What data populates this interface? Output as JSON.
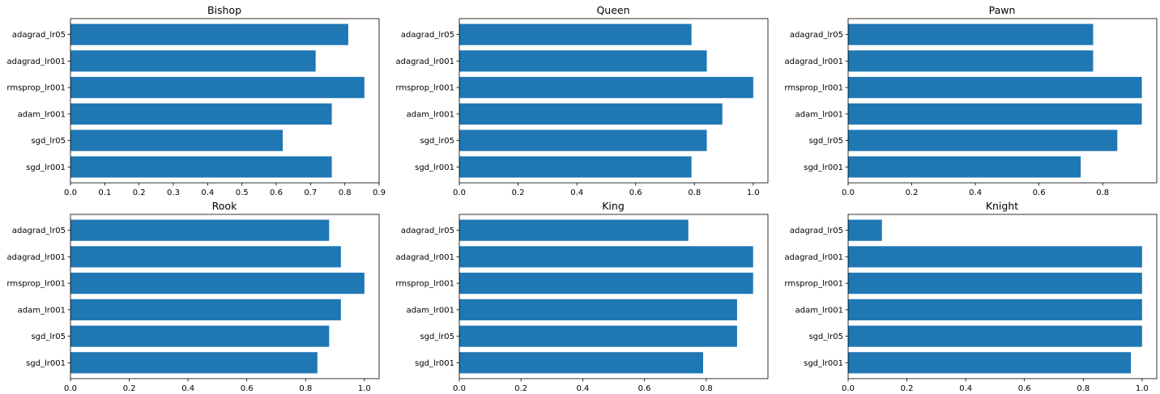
{
  "colors": {
    "bar": "#1f77b4",
    "axis": "#000000",
    "background": "#ffffff"
  },
  "chart_data": [
    {
      "type": "bar",
      "orientation": "horizontal",
      "title": "Bishop",
      "categories": [
        "adagrad_lr05",
        "adagrad_lr001",
        "rmsprop_lr001",
        "adam_lr001",
        "sgd_lr05",
        "sgd_lr001"
      ],
      "values": [
        0.81,
        0.715,
        0.857,
        0.762,
        0.619,
        0.762
      ],
      "xlim": [
        0,
        0.9
      ],
      "xticks": [
        0.0,
        0.1,
        0.2,
        0.3,
        0.4,
        0.5,
        0.6,
        0.7,
        0.8,
        0.9
      ],
      "xtick_labels": [
        "0.0",
        "0.1",
        "0.2",
        "0.3",
        "0.4",
        "0.5",
        "0.6",
        "0.7",
        "0.8",
        "0.9"
      ],
      "xlabel": "",
      "ylabel": "",
      "grid": false,
      "legend": "none"
    },
    {
      "type": "bar",
      "orientation": "horizontal",
      "title": "Queen",
      "categories": [
        "adagrad_lr05",
        "adagrad_lr001",
        "rmsprop_lr001",
        "adam_lr001",
        "sgd_lr05",
        "sgd_lr001"
      ],
      "values": [
        0.79,
        0.842,
        1.0,
        0.895,
        0.842,
        0.79
      ],
      "xlim": [
        0,
        1.05
      ],
      "xticks": [
        0.0,
        0.2,
        0.4,
        0.6,
        0.8,
        1.0
      ],
      "xtick_labels": [
        "0.0",
        "0.2",
        "0.4",
        "0.6",
        "0.8",
        "1.0"
      ],
      "xlabel": "",
      "ylabel": "",
      "grid": false,
      "legend": "none"
    },
    {
      "type": "bar",
      "orientation": "horizontal",
      "title": "Pawn",
      "categories": [
        "adagrad_lr05",
        "adagrad_lr001",
        "rmsprop_lr001",
        "adam_lr001",
        "sgd_lr05",
        "sgd_lr001"
      ],
      "values": [
        0.77,
        0.77,
        0.923,
        0.923,
        0.846,
        0.731
      ],
      "xlim": [
        0,
        0.97
      ],
      "xticks": [
        0.0,
        0.2,
        0.4,
        0.6,
        0.8
      ],
      "xtick_labels": [
        "0.0",
        "0.2",
        "0.4",
        "0.6",
        "0.8"
      ],
      "xlabel": "",
      "ylabel": "",
      "grid": false,
      "legend": "none"
    },
    {
      "type": "bar",
      "orientation": "horizontal",
      "title": "Rook",
      "categories": [
        "adagrad_lr05",
        "adagrad_lr001",
        "rmsprop_lr001",
        "adam_lr001",
        "sgd_lr05",
        "sgd_lr001"
      ],
      "values": [
        0.88,
        0.92,
        1.0,
        0.92,
        0.88,
        0.84
      ],
      "xlim": [
        0,
        1.05
      ],
      "xticks": [
        0.0,
        0.2,
        0.4,
        0.6,
        0.8,
        1.0
      ],
      "xtick_labels": [
        "0.0",
        "0.2",
        "0.4",
        "0.6",
        "0.8",
        "1.0"
      ],
      "xlabel": "",
      "ylabel": "",
      "grid": false,
      "legend": "none"
    },
    {
      "type": "bar",
      "orientation": "horizontal",
      "title": "King",
      "categories": [
        "adagrad_lr05",
        "adagrad_lr001",
        "rmsprop_lr001",
        "adam_lr001",
        "sgd_lr05",
        "sgd_lr001"
      ],
      "values": [
        0.742,
        0.952,
        0.952,
        0.9,
        0.9,
        0.79
      ],
      "xlim": [
        0,
        1.0
      ],
      "xticks": [
        0.0,
        0.2,
        0.4,
        0.6,
        0.8
      ],
      "xtick_labels": [
        "0.0",
        "0.2",
        "0.4",
        "0.6",
        "0.8"
      ],
      "xlabel": "",
      "ylabel": "",
      "grid": false,
      "legend": "none"
    },
    {
      "type": "bar",
      "orientation": "horizontal",
      "title": "Knight",
      "categories": [
        "adagrad_lr05",
        "adagrad_lr001",
        "rmsprop_lr001",
        "adam_lr001",
        "sgd_lr05",
        "sgd_lr001"
      ],
      "values": [
        0.115,
        1.0,
        1.0,
        1.0,
        1.0,
        0.962
      ],
      "xlim": [
        0,
        1.05
      ],
      "xticks": [
        0.0,
        0.2,
        0.4,
        0.6,
        0.8,
        1.0
      ],
      "xtick_labels": [
        "0.0",
        "0.2",
        "0.4",
        "0.6",
        "0.8",
        "1.0"
      ],
      "xlabel": "",
      "ylabel": "",
      "grid": false,
      "legend": "none"
    }
  ]
}
